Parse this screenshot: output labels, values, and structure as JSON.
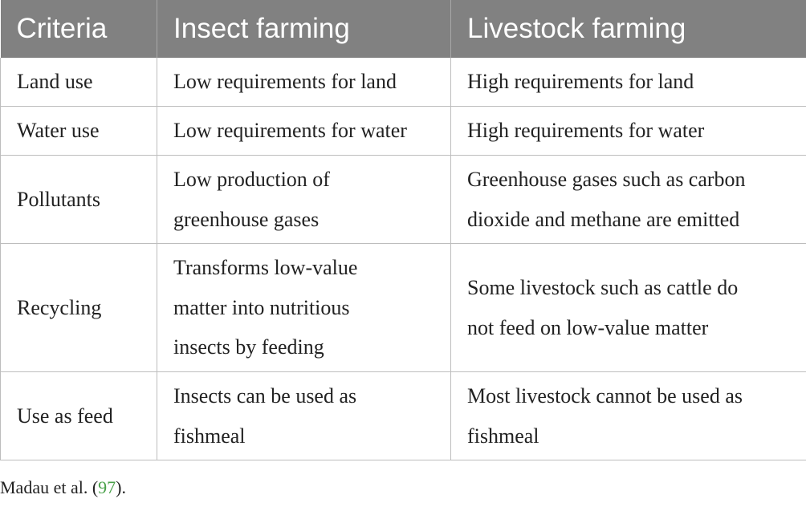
{
  "table": {
    "headers": [
      "Criteria",
      "Insect farming",
      "Livestock farming"
    ],
    "rows": [
      {
        "criteria": "Land use",
        "insect": [
          "Low requirements for land"
        ],
        "livestock": [
          "High requirements for land"
        ]
      },
      {
        "criteria": "Water use",
        "insect": [
          "Low requirements for water"
        ],
        "livestock": [
          "High requirements for water"
        ]
      },
      {
        "criteria": "Pollutants",
        "insect": [
          "Low production of",
          "greenhouse gases"
        ],
        "livestock": [
          "Greenhouse gases such as carbon",
          "dioxide and methane are emitted"
        ]
      },
      {
        "criteria": "Recycling",
        "insect": [
          "Transforms low-value",
          "matter into nutritious",
          "insects by feeding"
        ],
        "livestock": [
          "Some livestock such as cattle do",
          "not feed on low-value matter"
        ]
      },
      {
        "criteria": "Use as feed",
        "insect": [
          "Insects can be used as",
          "fishmeal"
        ],
        "livestock": [
          "Most livestock cannot be used as",
          "fishmeal"
        ]
      }
    ]
  },
  "footnote": {
    "prefix": "Madau et al. (",
    "ref": "97",
    "suffix": ").",
    "ref_color": "#4aa14a"
  },
  "colors": {
    "header_bg": "#818181",
    "header_text": "#ffffff",
    "border": "#bdbdbd"
  }
}
